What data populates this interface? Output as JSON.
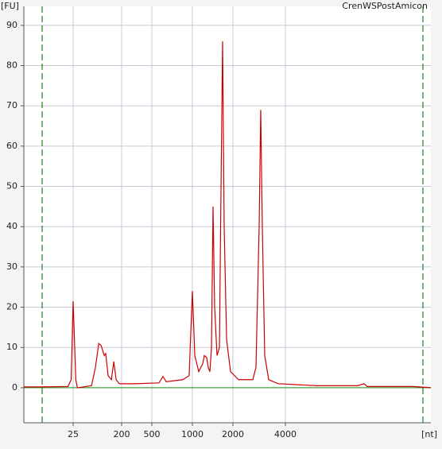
{
  "chart_data": {
    "type": "line",
    "title": "CrenWSPostAmicon",
    "y_label": "[FU]",
    "x_label": "[nt]",
    "x": [
      3,
      6,
      20,
      23,
      25,
      26,
      28,
      30,
      55,
      65,
      75,
      83,
      95,
      101,
      112,
      129,
      143,
      158,
      181,
      301,
      565,
      605,
      639,
      849,
      946,
      1000,
      1042,
      1115,
      1194,
      1227,
      1277,
      1312,
      1349,
      1386,
      1424,
      1463,
      1524,
      1588,
      1632,
      1676,
      1722,
      1795,
      1920,
      2153,
      2600,
      2711,
      2828,
      2888,
      2949,
      3044,
      3208,
      3639,
      6152,
      10400,
      11300,
      11800,
      21700,
      27400
    ],
    "series": [
      {
        "name": "CrenWSPostAmicon",
        "color": "#cc0000",
        "values": [
          0.2,
          0.2,
          0.3,
          2,
          21.5,
          15,
          2,
          0,
          0.5,
          5,
          11,
          10.5,
          8,
          8.5,
          3,
          2,
          6.5,
          2,
          1,
          1,
          1.2,
          2.8,
          1.5,
          2,
          3,
          24,
          8,
          4,
          6,
          8,
          7.5,
          5,
          4,
          10,
          45,
          20,
          8,
          10,
          50,
          86,
          40,
          12,
          4,
          2,
          2,
          5,
          40,
          69,
          40,
          8,
          2,
          1,
          0.5,
          0.5,
          1,
          0.3,
          0.3,
          0
        ]
      }
    ],
    "xlim": [
      3,
      27400
    ],
    "xticks": [
      25,
      200,
      500,
      1000,
      2000,
      4000
    ],
    "ylim": [
      -8.7,
      94.7
    ],
    "yticks": [
      0,
      10,
      20,
      30,
      40,
      50,
      60,
      70,
      80,
      90
    ],
    "grid": true
  }
}
